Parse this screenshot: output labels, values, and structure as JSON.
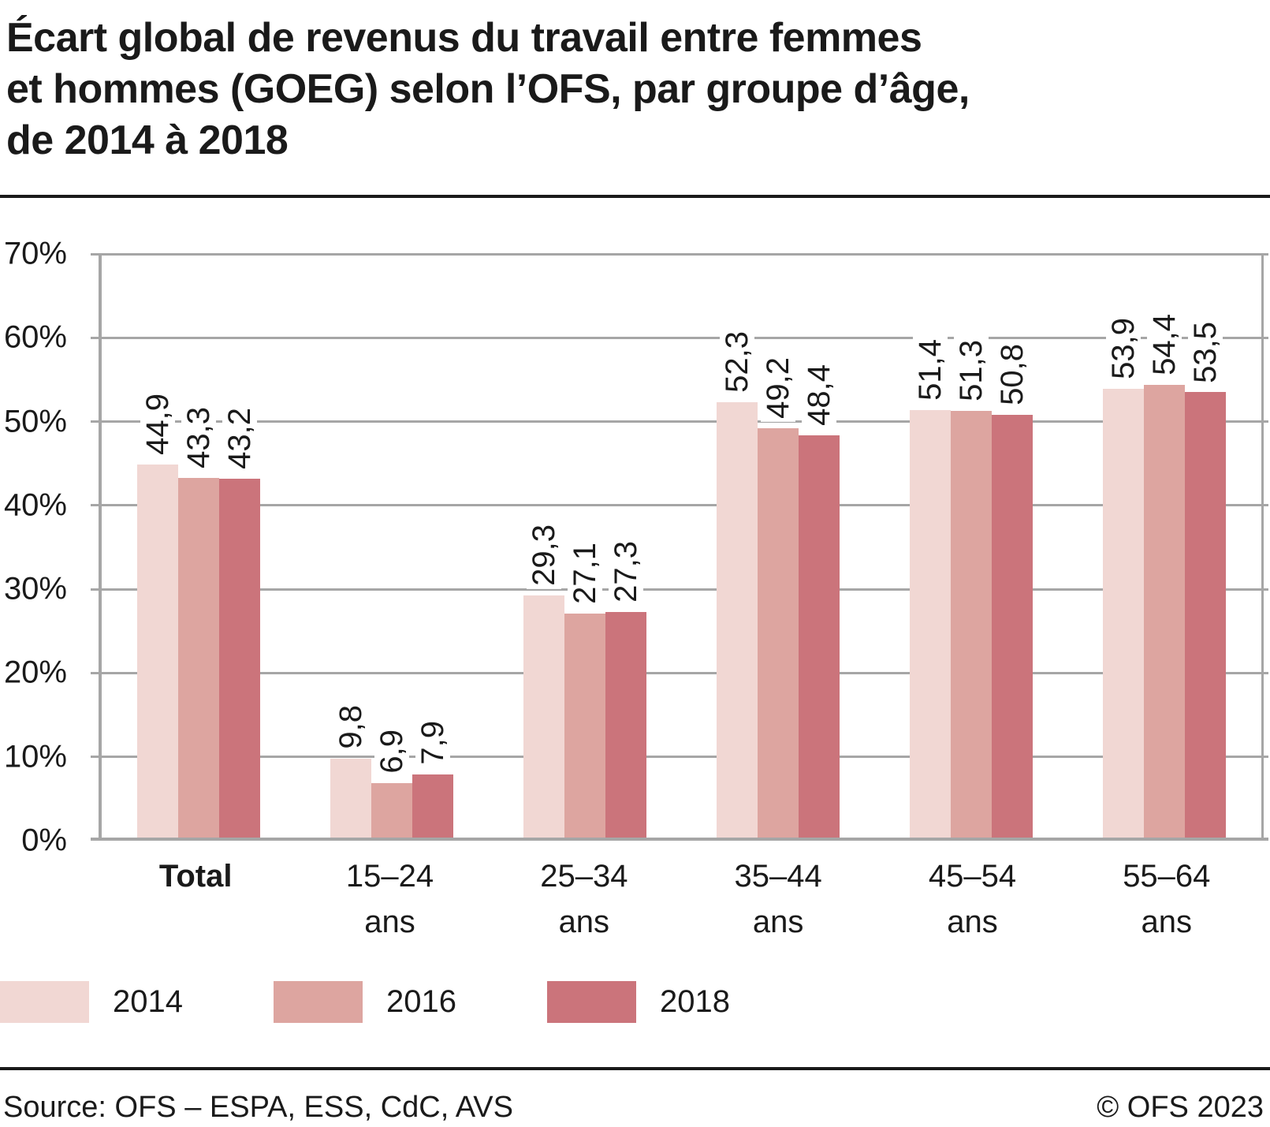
{
  "title": "Écart global de revenus du travail entre femmes\net hommes (GOEG) selon l’OFS, par groupe d’âge,\nde 2014 à 2018",
  "footer": {
    "source": "Source: OFS – ESPA, ESS, CdC, AVS",
    "copyright": "© OFS 2023"
  },
  "colors": {
    "text": "#1a1a1a",
    "rule": "#1a1a1a",
    "grid": "#a6a6a6",
    "axis": "#a6a6a6"
  },
  "chart_data": {
    "type": "bar",
    "title": "Écart global de revenus du travail entre femmes et hommes (GOEG) selon l’OFS, par groupe d’âge, de 2014 à 2018",
    "xlabel": "",
    "ylabel": "",
    "ylim": [
      0,
      70
    ],
    "grid": true,
    "legend_position": "bottom",
    "decimal_separator": ",",
    "yticks": [
      {
        "v": 0,
        "label": "0%"
      },
      {
        "v": 10,
        "label": "10%"
      },
      {
        "v": 20,
        "label": "20%"
      },
      {
        "v": 30,
        "label": "30%"
      },
      {
        "v": 40,
        "label": "40%"
      },
      {
        "v": 50,
        "label": "50%"
      },
      {
        "v": 60,
        "label": "60%"
      },
      {
        "v": 70,
        "label": "70%"
      }
    ],
    "categories": [
      {
        "line1": "Total",
        "line2": "",
        "bold": true
      },
      {
        "line1": "15–24",
        "line2": "ans",
        "bold": false
      },
      {
        "line1": "25–34",
        "line2": "ans",
        "bold": false
      },
      {
        "line1": "35–44",
        "line2": "ans",
        "bold": false
      },
      {
        "line1": "45–54",
        "line2": "ans",
        "bold": false
      },
      {
        "line1": "55–64",
        "line2": "ans",
        "bold": false
      }
    ],
    "series": [
      {
        "name": "2014",
        "color": "#f1d7d3",
        "values": [
          44.9,
          9.8,
          29.3,
          52.3,
          51.4,
          53.9
        ],
        "labels": [
          "44,9",
          "9,8",
          "29,3",
          "52,3",
          "51,4",
          "53,9"
        ]
      },
      {
        "name": "2016",
        "color": "#dda5a0",
        "values": [
          43.3,
          6.9,
          27.1,
          49.2,
          51.3,
          54.4
        ],
        "labels": [
          "43,3",
          "6,9",
          "27,1",
          "49,2",
          "51,3",
          "54,4"
        ]
      },
      {
        "name": "2018",
        "color": "#cb747b",
        "values": [
          43.2,
          7.9,
          27.3,
          48.4,
          50.8,
          53.5
        ],
        "labels": [
          "43,2",
          "7,9",
          "27,3",
          "48,4",
          "50,8",
          "53,5"
        ]
      }
    ]
  }
}
